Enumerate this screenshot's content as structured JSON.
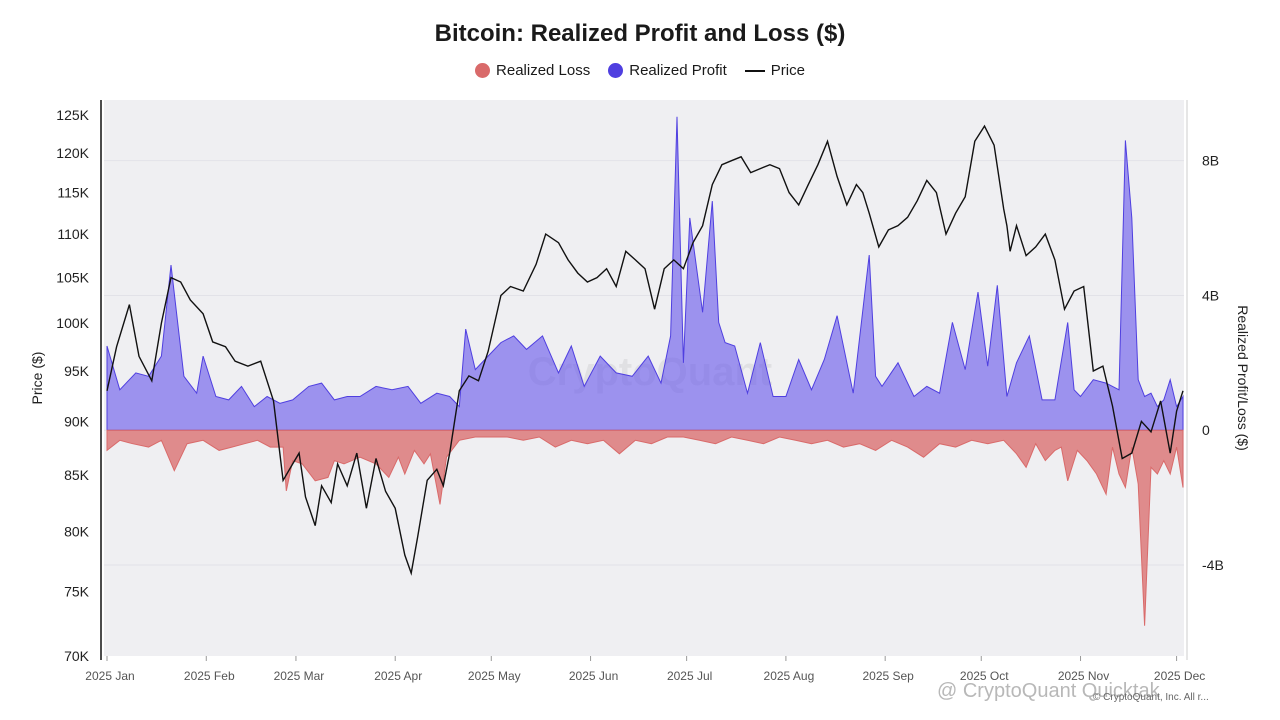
{
  "title": "Bitcoin: Realized Profit and Loss ($)",
  "legend": [
    {
      "label": "Realized Loss",
      "color": "#d96a6a",
      "kind": "dot"
    },
    {
      "label": "Realized Profit",
      "color": "#4f3fe0",
      "kind": "dot"
    },
    {
      "label": "Price",
      "color": "#111111",
      "kind": "line"
    }
  ],
  "watermark": "@ CryptoQuant Quicktak",
  "background_watermark": "CryptoQuant",
  "attribution": "© CryptoQuant, Inc. All r...",
  "chart_data": {
    "type": "area+line",
    "title": "Bitcoin: Realized Profit and Loss ($)",
    "xlabel": "",
    "ylabel_left": "Price ($)",
    "ylabel_right": "Realized Profit/Loss ($)",
    "left_axis": {
      "scale": "log",
      "range": [
        70000,
        127000
      ],
      "ticks": [
        70000,
        75000,
        80000,
        85000,
        90000,
        95000,
        100000,
        105000,
        110000,
        115000,
        120000,
        125000
      ],
      "tick_labels": [
        "70K",
        "75K",
        "80K",
        "85K",
        "90K",
        "95K",
        "100K",
        "105K",
        "110K",
        "115K",
        "120K",
        "125K"
      ]
    },
    "right_axis": {
      "scale": "linear",
      "range": [
        -6.7,
        9.8
      ],
      "ticks": [
        -4,
        0,
        4,
        8
      ],
      "tick_labels": [
        "-4B",
        "0",
        "4B",
        "8B"
      ]
    },
    "x_labels": [
      "2025 Jan",
      "2025 Feb",
      "2025 Mar",
      "2025 Apr",
      "2025 May",
      "2025 Jun",
      "2025 Jul",
      "2025 Aug",
      "2025 Sep",
      "2025 Oct",
      "2025 Nov",
      "2025 Dec"
    ],
    "x_label_days": [
      0,
      31,
      59,
      90,
      120,
      151,
      181,
      212,
      243,
      273,
      304,
      334
    ],
    "price": {
      "name": "Price",
      "days": [
        0,
        3,
        7,
        10,
        14,
        17,
        20,
        23,
        26,
        30,
        33,
        37,
        40,
        44,
        48,
        52,
        55,
        58,
        60,
        62,
        65,
        67,
        70,
        72,
        75,
        78,
        81,
        84,
        87,
        90,
        93,
        95,
        97,
        100,
        103,
        105,
        107,
        110,
        113,
        116,
        119,
        123,
        126,
        130,
        134,
        137,
        141,
        144,
        147,
        150,
        153,
        156,
        159,
        162,
        165,
        168,
        171,
        174,
        177,
        180,
        183,
        186,
        189,
        192,
        195,
        198,
        201,
        204,
        207,
        210,
        213,
        216,
        219,
        222,
        225,
        228,
        231,
        234,
        236,
        238,
        241,
        244,
        247,
        250,
        253,
        256,
        259,
        262,
        265,
        268,
        271,
        274,
        277,
        280,
        281,
        282,
        284,
        287,
        290,
        293,
        296,
        299,
        302,
        305,
        308,
        311,
        314,
        317,
        320,
        323,
        326,
        329,
        332,
        334,
        336
      ],
      "values": [
        93000,
        97500,
        102000,
        96500,
        94000,
        100000,
        105000,
        104500,
        102500,
        101000,
        98000,
        97500,
        96000,
        95500,
        96000,
        92000,
        84500,
        86000,
        87000,
        83000,
        80500,
        84000,
        82500,
        86000,
        84000,
        87000,
        82000,
        86500,
        83500,
        82000,
        78000,
        76500,
        79500,
        84500,
        85500,
        84000,
        87000,
        93000,
        94500,
        94000,
        97000,
        103000,
        104000,
        103500,
        106500,
        110000,
        109000,
        107000,
        105500,
        104500,
        105000,
        106000,
        104000,
        108000,
        107000,
        106000,
        101500,
        106000,
        107000,
        106000,
        109000,
        111000,
        116000,
        118500,
        119000,
        119500,
        117500,
        118000,
        118500,
        118000,
        115000,
        113500,
        116000,
        118500,
        121500,
        117000,
        113500,
        116000,
        115000,
        112500,
        108500,
        110500,
        111000,
        112000,
        114000,
        116500,
        115000,
        110000,
        112500,
        114500,
        121500,
        123500,
        121000,
        113000,
        111000,
        108000,
        111000,
        107500,
        108500,
        110000,
        107000,
        101500,
        103500,
        104000,
        95000,
        95500,
        91500,
        86500,
        87000,
        90000,
        89000,
        92000,
        87000,
        91000,
        93000
      ]
    },
    "series": [
      {
        "name": "Realized Profit",
        "color": "#4f3fe0",
        "unit": "billion USD",
        "days": [
          0,
          4,
          9,
          13,
          17,
          20,
          24,
          28,
          30,
          34,
          38,
          42,
          46,
          50,
          54,
          58,
          63,
          67,
          71,
          75,
          79,
          84,
          89,
          94,
          98,
          103,
          107,
          110,
          112,
          115,
          119,
          123,
          127,
          131,
          136,
          141,
          145,
          149,
          154,
          159,
          164,
          169,
          173,
          176,
          178,
          180,
          182,
          186,
          189,
          191,
          193,
          196,
          200,
          204,
          208,
          212,
          216,
          220,
          224,
          228,
          233,
          238,
          240,
          242,
          247,
          252,
          256,
          260,
          264,
          268,
          272,
          275,
          278,
          281,
          284,
          288,
          292,
          296,
          300,
          302,
          304,
          308,
          312,
          316,
          318,
          320,
          322,
          324,
          326,
          328,
          330,
          332,
          334,
          336
        ],
        "values": [
          2.5,
          1.2,
          1.7,
          1.6,
          2.2,
          4.9,
          1.6,
          1.1,
          2.2,
          1.0,
          0.9,
          1.3,
          0.7,
          1.0,
          0.8,
          0.9,
          1.3,
          1.4,
          0.9,
          1.0,
          1.0,
          1.3,
          1.2,
          1.3,
          0.8,
          1.1,
          1.0,
          0.7,
          3.0,
          1.8,
          2.2,
          2.6,
          2.8,
          2.4,
          2.8,
          1.7,
          2.5,
          1.3,
          2.2,
          1.7,
          1.6,
          2.2,
          1.4,
          2.8,
          9.3,
          2.0,
          6.3,
          3.5,
          6.8,
          3.2,
          2.6,
          2.5,
          1.1,
          2.6,
          1.0,
          1.0,
          2.1,
          1.2,
          2.1,
          3.4,
          1.1,
          5.2,
          1.6,
          1.3,
          2.0,
          1.0,
          1.3,
          1.1,
          3.2,
          1.8,
          4.1,
          1.9,
          4.3,
          1.0,
          2.0,
          2.8,
          0.9,
          0.9,
          3.2,
          1.2,
          1.0,
          1.5,
          1.4,
          1.2,
          8.6,
          6.3,
          1.5,
          1.0,
          1.1,
          0.7,
          0.9,
          1.5,
          0.7,
          1.0
        ]
      },
      {
        "name": "Realized Loss",
        "color": "#d96a6a",
        "unit": "billion USD",
        "days": [
          0,
          4,
          8,
          13,
          17,
          21,
          25,
          30,
          35,
          39,
          43,
          47,
          51,
          55,
          56,
          58,
          61,
          65,
          69,
          71,
          74,
          79,
          84,
          88,
          91,
          93,
          96,
          99,
          101,
          104,
          106,
          110,
          115,
          120,
          125,
          130,
          135,
          140,
          145,
          150,
          155,
          160,
          165,
          170,
          175,
          180,
          185,
          190,
          195,
          200,
          205,
          210,
          215,
          220,
          225,
          230,
          235,
          240,
          245,
          250,
          255,
          260,
          265,
          270,
          275,
          280,
          284,
          287,
          290,
          293,
          296,
          298,
          300,
          303,
          306,
          309,
          312,
          314,
          316,
          318,
          320,
          322,
          324,
          326,
          328,
          330,
          332,
          334,
          336
        ],
        "values": [
          -0.6,
          -0.3,
          -0.4,
          -0.5,
          -0.3,
          -1.2,
          -0.4,
          -0.3,
          -0.6,
          -0.5,
          -0.4,
          -0.3,
          -0.5,
          -0.5,
          -1.8,
          -0.9,
          -1.0,
          -1.5,
          -1.4,
          -0.9,
          -1.0,
          -0.8,
          -1.0,
          -1.4,
          -0.8,
          -1.3,
          -0.6,
          -1.0,
          -0.7,
          -2.2,
          -0.8,
          -0.3,
          -0.2,
          -0.2,
          -0.2,
          -0.3,
          -0.2,
          -0.5,
          -0.3,
          -0.4,
          -0.3,
          -0.7,
          -0.3,
          -0.4,
          -0.2,
          -0.2,
          -0.3,
          -0.4,
          -0.2,
          -0.3,
          -0.4,
          -0.2,
          -0.3,
          -0.4,
          -0.3,
          -0.5,
          -0.4,
          -0.6,
          -0.3,
          -0.5,
          -0.8,
          -0.4,
          -0.5,
          -0.3,
          -0.4,
          -0.3,
          -0.7,
          -1.1,
          -0.4,
          -0.9,
          -0.6,
          -0.5,
          -1.5,
          -0.6,
          -0.9,
          -1.3,
          -1.9,
          -0.5,
          -1.3,
          -1.7,
          -0.5,
          -1.6,
          -5.8,
          -1.1,
          -1.3,
          -0.9,
          -1.3,
          -0.5,
          -1.7
        ]
      }
    ]
  }
}
